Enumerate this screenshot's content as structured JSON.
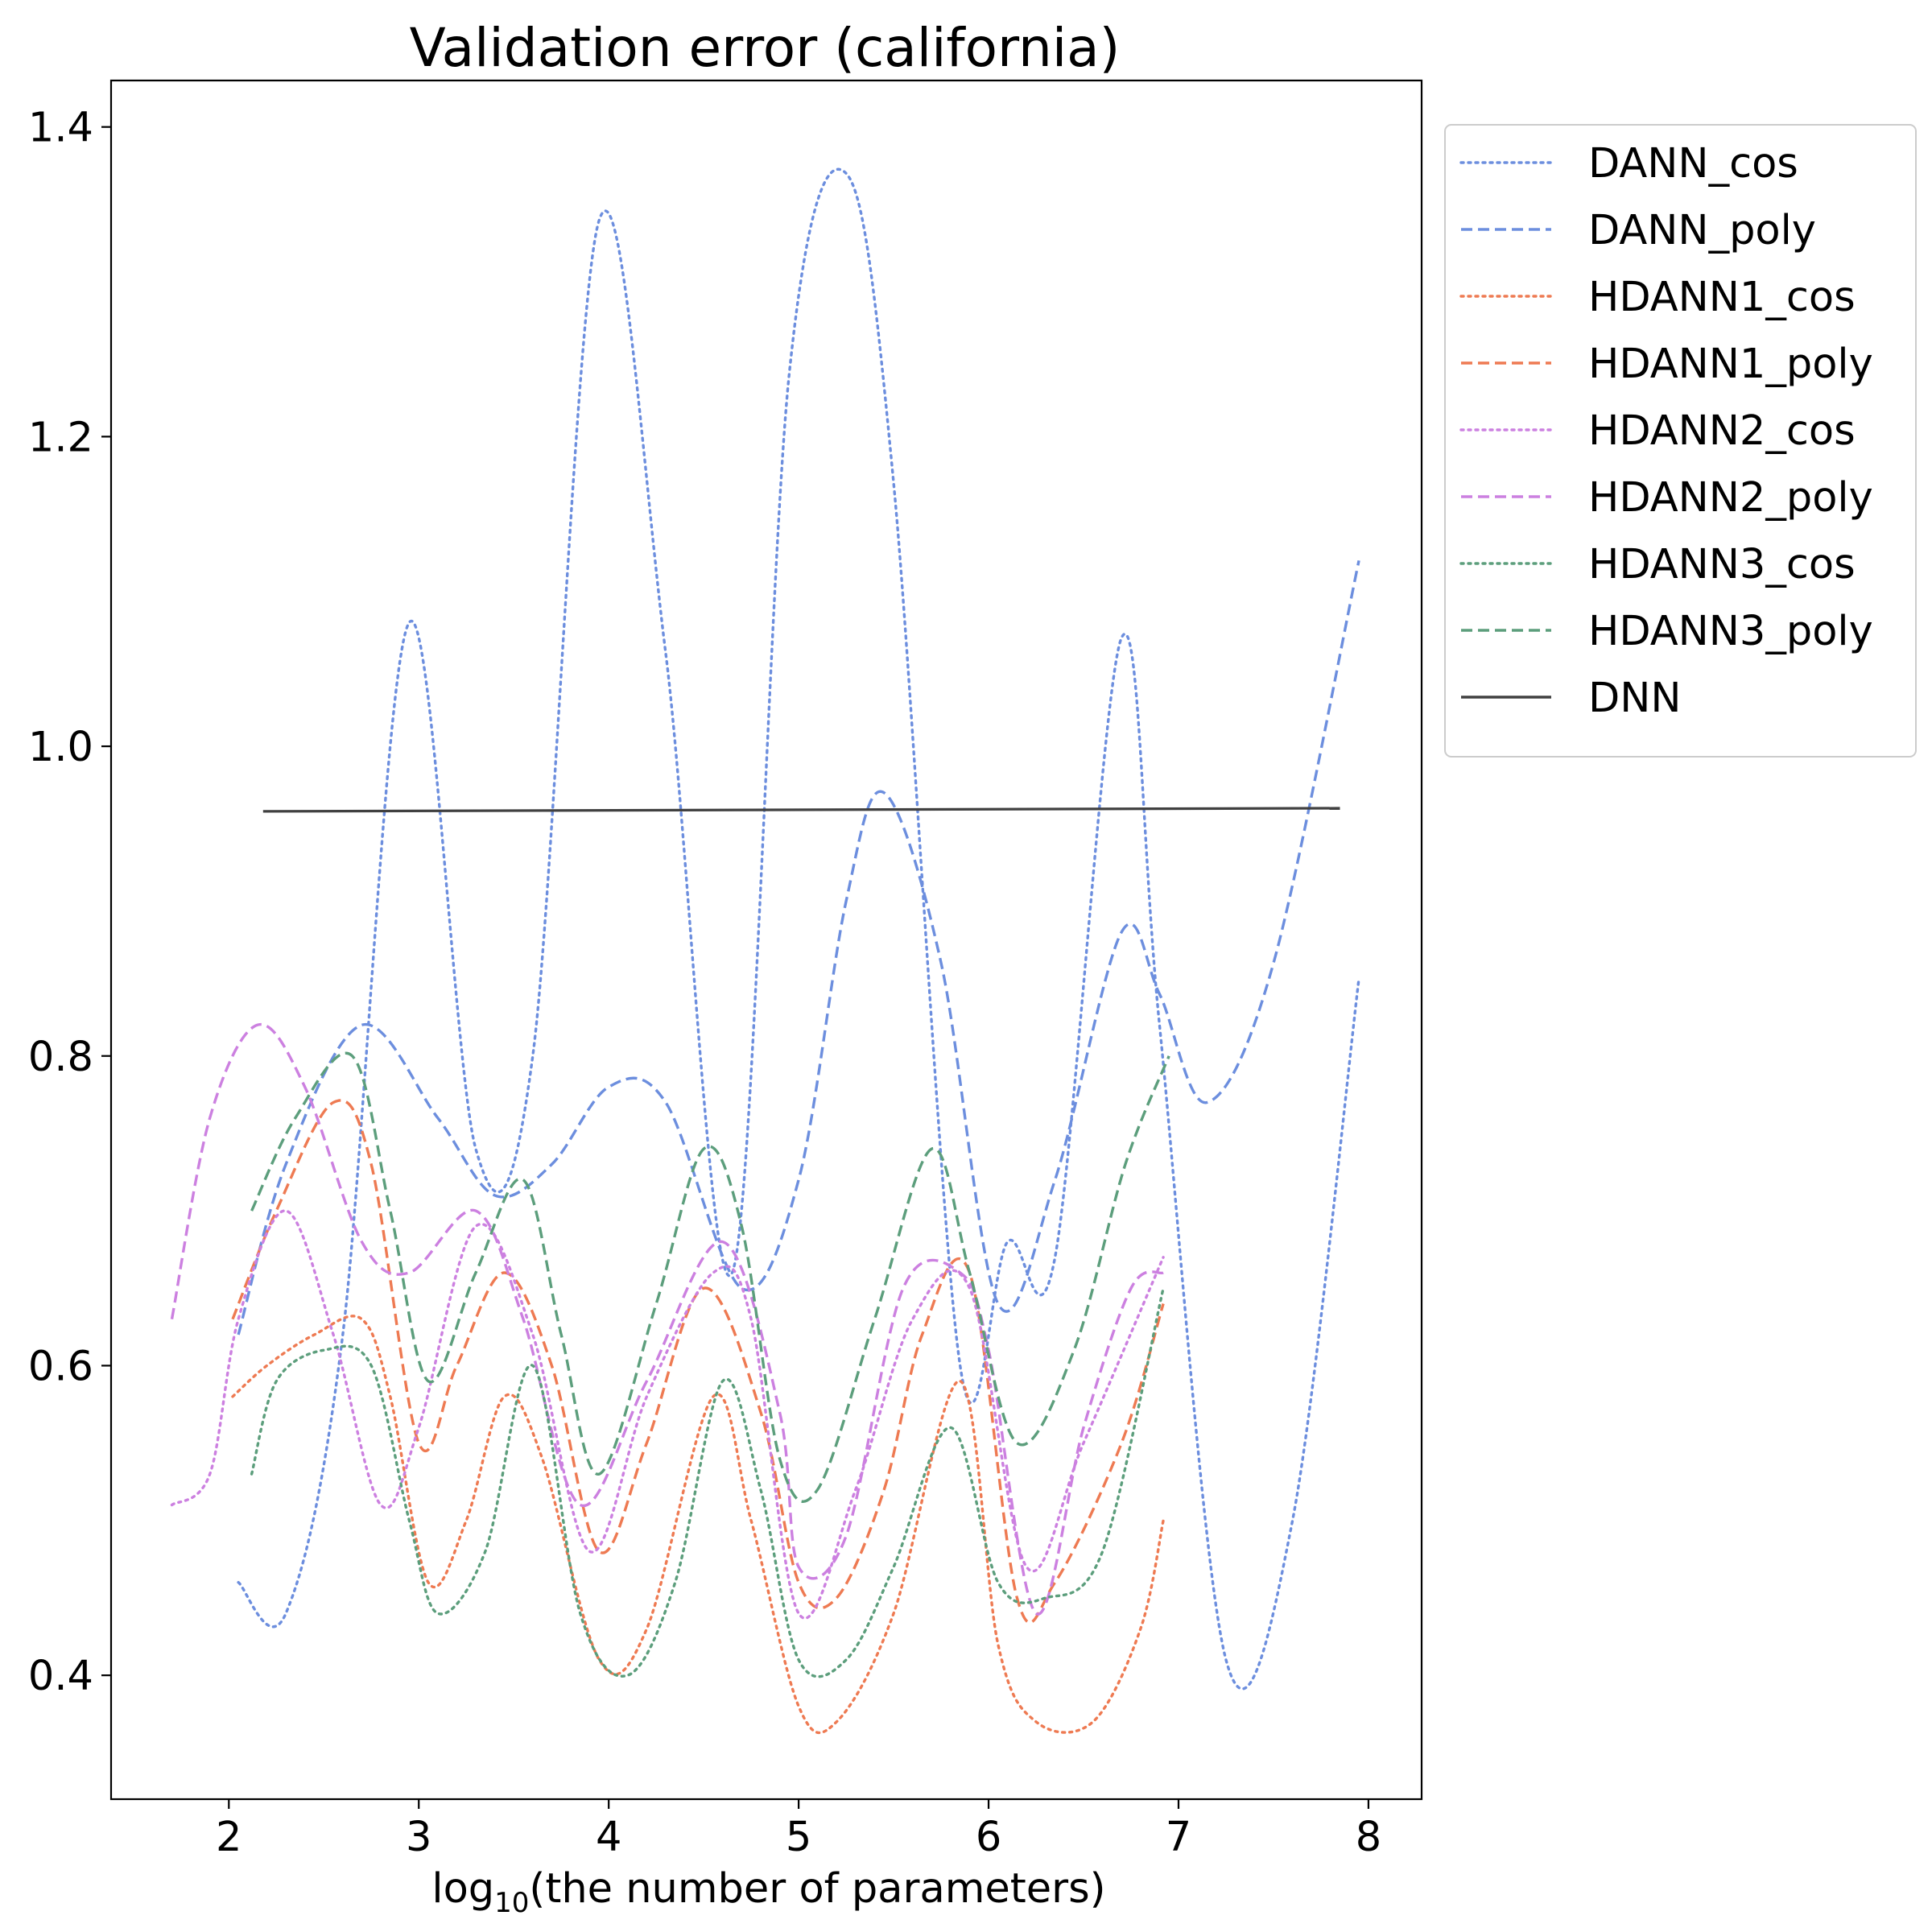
{
  "chart_data": {
    "type": "line",
    "title": "Validation error (california)",
    "xlabel_main": "log",
    "xlabel_sub": "10",
    "xlabel_rest": "(the number of parameters)",
    "ylabel": "",
    "xlim": [
      1.38,
      8.28
    ],
    "ylim": [
      0.32,
      1.43
    ],
    "xticks": [
      "2",
      "3",
      "4",
      "5",
      "6",
      "7",
      "8"
    ],
    "yticks": [
      "0.4",
      "0.6",
      "0.8",
      "1.0",
      "1.2",
      "1.4"
    ],
    "grid": false,
    "legend_position": "outside-right-top",
    "series": [
      {
        "name": "DANN_cos",
        "color": "#6c8ede",
        "dash": "dotted",
        "x": [
          2.05,
          2.3,
          2.6,
          2.95,
          3.3,
          3.6,
          3.95,
          4.3,
          4.65,
          4.95,
          5.25,
          5.5,
          5.85,
          6.1,
          6.35,
          6.7,
          6.9,
          7.25,
          7.6,
          7.95
        ],
        "y": [
          0.46,
          0.44,
          0.62,
          1.08,
          0.74,
          0.8,
          1.34,
          1.06,
          0.66,
          1.24,
          1.37,
          1.17,
          0.6,
          0.68,
          0.67,
          1.07,
          0.82,
          0.41,
          0.5,
          0.85
        ]
      },
      {
        "name": "DANN_poly",
        "color": "#6c8ede",
        "dash": "dashed",
        "x": [
          2.05,
          2.3,
          2.7,
          3.1,
          3.4,
          3.7,
          4.0,
          4.3,
          4.7,
          5.0,
          5.25,
          5.45,
          5.75,
          6.05,
          6.35,
          6.7,
          6.9,
          7.15,
          7.5,
          7.95
        ],
        "y": [
          0.62,
          0.73,
          0.82,
          0.76,
          0.71,
          0.73,
          0.78,
          0.77,
          0.65,
          0.72,
          0.9,
          0.97,
          0.86,
          0.64,
          0.72,
          0.88,
          0.84,
          0.77,
          0.86,
          1.12
        ]
      },
      {
        "name": "HDANN1_cos",
        "color": "#ee7a52",
        "dash": "dotted",
        "x": [
          2.02,
          2.2,
          2.45,
          2.7,
          2.85,
          3.05,
          3.25,
          3.45,
          3.65,
          3.95,
          4.2,
          4.55,
          4.75,
          5.0,
          5.2,
          5.5,
          5.85,
          6.05,
          6.25,
          6.55,
          6.8,
          6.92
        ],
        "y": [
          0.58,
          0.6,
          0.62,
          0.63,
          0.58,
          0.46,
          0.5,
          0.58,
          0.54,
          0.41,
          0.43,
          0.58,
          0.5,
          0.38,
          0.37,
          0.44,
          0.59,
          0.42,
          0.37,
          0.37,
          0.43,
          0.5
        ]
      },
      {
        "name": "HDANN1_poly",
        "color": "#ee7a52",
        "dash": "dashed",
        "x": [
          2.02,
          2.25,
          2.55,
          2.75,
          3.0,
          3.2,
          3.45,
          3.7,
          3.95,
          4.2,
          4.5,
          4.8,
          5.0,
          5.2,
          5.45,
          5.65,
          5.9,
          6.15,
          6.35,
          6.7,
          6.92
        ],
        "y": [
          0.63,
          0.7,
          0.77,
          0.73,
          0.55,
          0.6,
          0.66,
          0.6,
          0.48,
          0.55,
          0.65,
          0.57,
          0.46,
          0.45,
          0.52,
          0.62,
          0.66,
          0.45,
          0.46,
          0.55,
          0.64
        ]
      },
      {
        "name": "HDANN2_cos",
        "color": "#cc80e0",
        "dash": "dotted",
        "x": [
          1.7,
          1.9,
          2.05,
          2.3,
          2.55,
          2.8,
          3.0,
          3.3,
          3.6,
          3.9,
          4.2,
          4.55,
          4.75,
          5.0,
          5.3,
          5.6,
          5.9,
          6.2,
          6.5,
          6.92
        ],
        "y": [
          0.51,
          0.53,
          0.63,
          0.7,
          0.62,
          0.51,
          0.56,
          0.69,
          0.62,
          0.48,
          0.58,
          0.66,
          0.63,
          0.44,
          0.52,
          0.63,
          0.65,
          0.47,
          0.55,
          0.67
        ]
      },
      {
        "name": "HDANN2_poly",
        "color": "#cc80e0",
        "dash": "dashed",
        "x": [
          1.7,
          1.9,
          2.15,
          2.4,
          2.7,
          2.95,
          3.3,
          3.55,
          3.85,
          4.2,
          4.6,
          4.9,
          5.0,
          5.25,
          5.55,
          5.85,
          6.0,
          6.25,
          6.5,
          6.75,
          6.92
        ],
        "y": [
          0.63,
          0.76,
          0.82,
          0.78,
          0.68,
          0.66,
          0.7,
          0.63,
          0.51,
          0.59,
          0.68,
          0.57,
          0.47,
          0.49,
          0.65,
          0.66,
          0.61,
          0.44,
          0.56,
          0.65,
          0.66
        ]
      },
      {
        "name": "HDANN3_cos",
        "color": "#5c9e7c",
        "dash": "dotted",
        "x": [
          2.12,
          2.25,
          2.5,
          2.75,
          2.95,
          3.1,
          3.35,
          3.6,
          3.85,
          4.1,
          4.35,
          4.6,
          4.8,
          5.0,
          5.25,
          5.5,
          5.8,
          6.05,
          6.3,
          6.6,
          6.92
        ],
        "y": [
          0.53,
          0.59,
          0.61,
          0.6,
          0.5,
          0.44,
          0.48,
          0.6,
          0.44,
          0.4,
          0.46,
          0.59,
          0.52,
          0.41,
          0.41,
          0.47,
          0.56,
          0.46,
          0.45,
          0.48,
          0.65
        ]
      },
      {
        "name": "HDANN3_poly",
        "color": "#5c9e7c",
        "dash": "dashed",
        "x": [
          2.12,
          2.35,
          2.65,
          2.85,
          3.05,
          3.3,
          3.55,
          3.75,
          3.95,
          4.25,
          4.5,
          4.7,
          4.9,
          5.1,
          5.4,
          5.7,
          5.9,
          6.15,
          6.45,
          6.72,
          6.95
        ],
        "y": [
          0.7,
          0.76,
          0.8,
          0.7,
          0.59,
          0.66,
          0.72,
          0.62,
          0.53,
          0.64,
          0.74,
          0.69,
          0.54,
          0.52,
          0.63,
          0.74,
          0.66,
          0.55,
          0.61,
          0.73,
          0.8
        ]
      },
      {
        "name": "DNN",
        "color": "#404040",
        "dash": "solid",
        "x": [
          2.18,
          7.85
        ],
        "y": [
          0.958,
          0.96
        ]
      }
    ]
  }
}
